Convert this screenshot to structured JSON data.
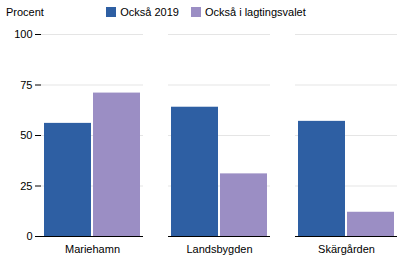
{
  "chart_data": {
    "type": "bar",
    "categories": [
      "Mariehamn",
      "Landsbygden",
      "Skärgården"
    ],
    "series": [
      {
        "name": "Också 2019",
        "color": "#2e5fa3",
        "values": [
          56,
          64,
          57
        ]
      },
      {
        "name": "Också i lagtingsvalet",
        "color": "#9b8ec4",
        "values": [
          71,
          31,
          12
        ]
      }
    ],
    "ylabel": "Procent",
    "ylim": [
      0,
      100
    ],
    "yticks": [
      0,
      25,
      50,
      75,
      100
    ],
    "grid": true,
    "legend": "top"
  }
}
